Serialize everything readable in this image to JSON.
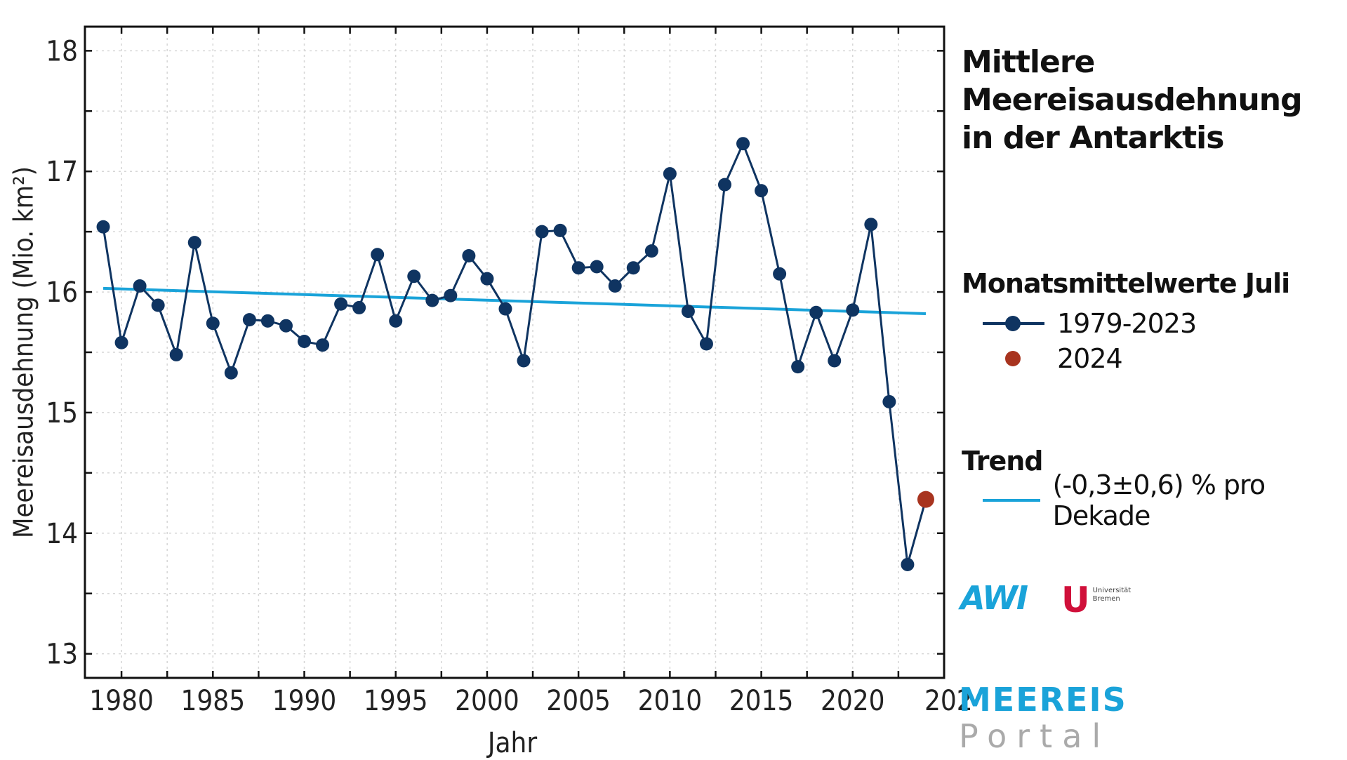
{
  "title_line1": "Mittlere Meereisausdehnung",
  "title_line2": "in der Antarktis",
  "legend": {
    "monthly_heading": "Monatsmittelwerte Juli",
    "series_label": "1979-2023",
    "highlight_label": "2024",
    "trend_heading": "Trend",
    "trend_label": "(-0,3±0,6) % pro Dekade"
  },
  "logos": {
    "awi": "AWI",
    "uni_mark": "U",
    "uni_text_1": "Universität",
    "uni_text_2": "Bremen",
    "portal_top": "MEEREIS",
    "portal_bottom": "Portal"
  },
  "colors": {
    "series": "#0f3461",
    "trend": "#1aa3d9",
    "highlight": "#a8341f"
  },
  "chart_data": {
    "type": "line",
    "title": "Mittlere Meereisausdehnung in der Antarktis",
    "xlabel": "Jahr",
    "ylabel": "Meereisausdehnung (Mio. km²)",
    "xlim": [
      1978,
      2025
    ],
    "ylim": [
      12.8,
      18.2
    ],
    "xticks": [
      1980,
      1985,
      1990,
      1995,
      2000,
      2005,
      2010,
      2015,
      2020
    ],
    "xtick_clipped": "202",
    "yticks": [
      13,
      14,
      15,
      16,
      17,
      18
    ],
    "grid": true,
    "legend_position": "right",
    "series": [
      {
        "name": "1979-2023",
        "x": [
          1979,
          1980,
          1981,
          1982,
          1983,
          1984,
          1985,
          1986,
          1987,
          1988,
          1989,
          1990,
          1991,
          1992,
          1993,
          1994,
          1995,
          1996,
          1997,
          1998,
          1999,
          2000,
          2001,
          2002,
          2003,
          2004,
          2005,
          2006,
          2007,
          2008,
          2009,
          2010,
          2011,
          2012,
          2013,
          2014,
          2015,
          2016,
          2017,
          2018,
          2019,
          2020,
          2021,
          2022,
          2023,
          2024
        ],
        "values": [
          16.54,
          15.58,
          16.05,
          15.89,
          15.48,
          16.41,
          15.74,
          15.33,
          15.77,
          15.76,
          15.72,
          15.59,
          15.56,
          15.9,
          15.87,
          16.31,
          15.76,
          16.13,
          15.93,
          15.97,
          16.3,
          16.11,
          15.86,
          15.43,
          16.5,
          16.51,
          16.2,
          16.21,
          16.05,
          16.2,
          16.34,
          16.98,
          15.84,
          15.57,
          16.89,
          17.23,
          16.84,
          16.15,
          15.38,
          15.83,
          15.43,
          15.85,
          16.56,
          15.09,
          13.74,
          14.28
        ]
      },
      {
        "name": "2024",
        "x": [
          2024
        ],
        "values": [
          14.28
        ]
      },
      {
        "name": "(-0,3±0,6) % pro Dekade",
        "x": [
          1979,
          2024
        ],
        "values": [
          16.03,
          15.82
        ]
      }
    ]
  }
}
